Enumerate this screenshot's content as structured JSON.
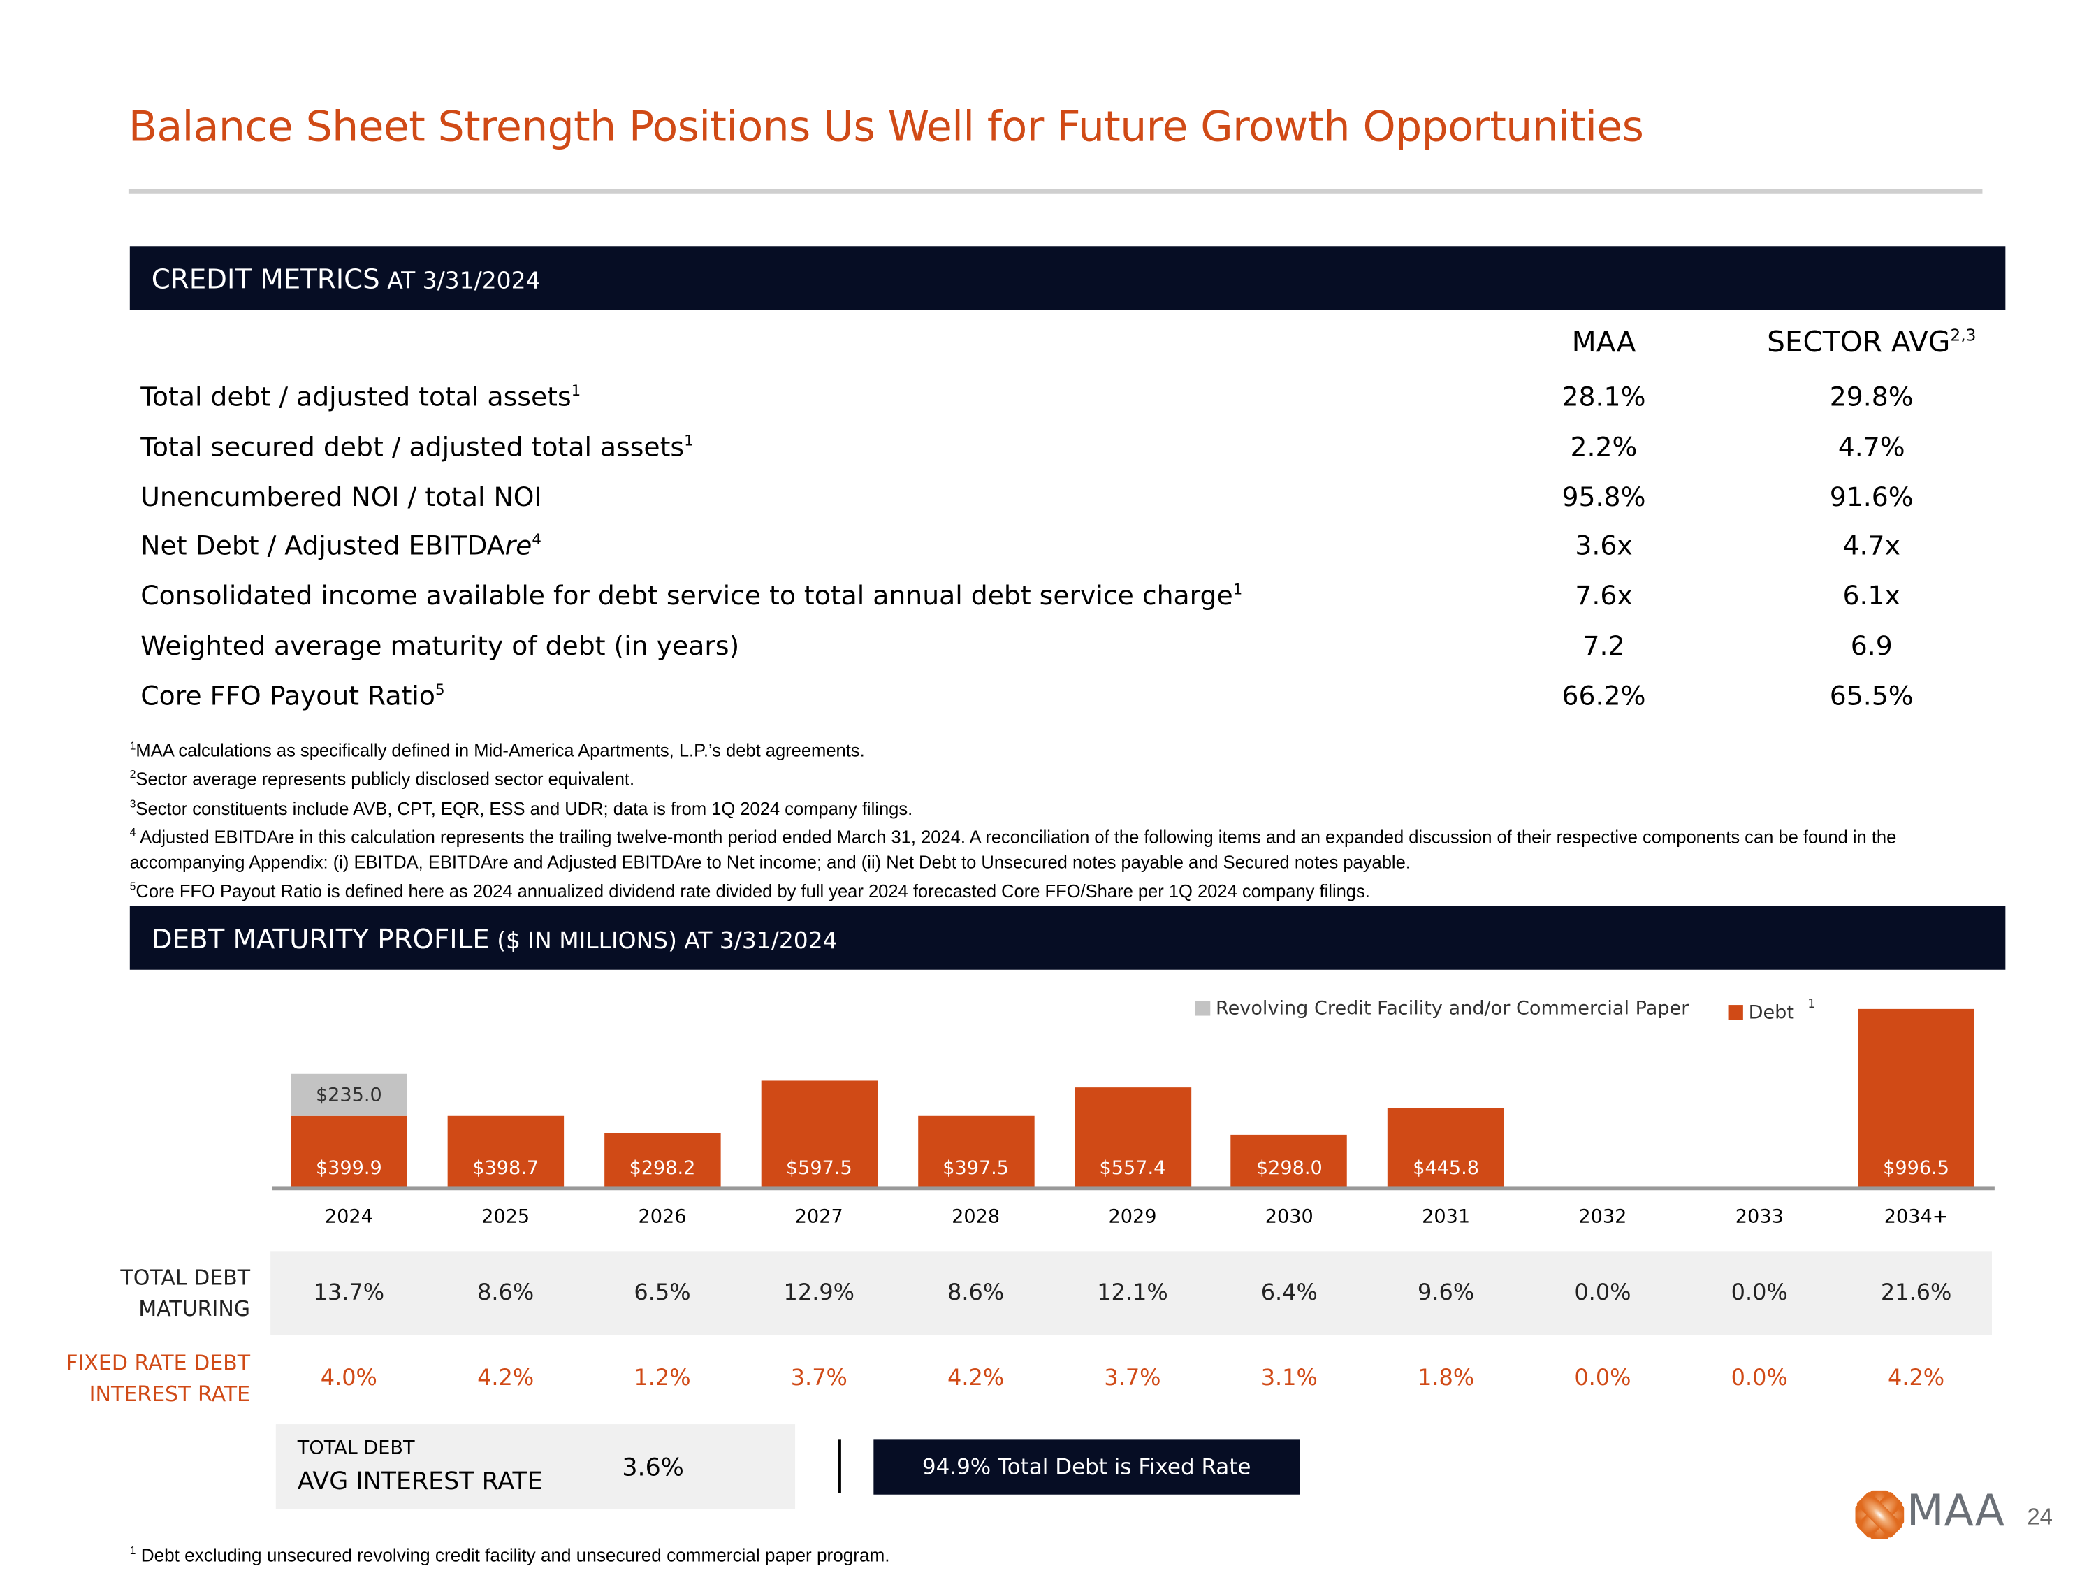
{
  "title": "Balance Sheet Strength Positions Us Well for Future Growth Opportunities",
  "credit": {
    "header_big": "CREDIT METRICS",
    "header_small": " AT 3/31/2024",
    "col_maa": "MAA",
    "col_sector": "SECTOR AVG",
    "col_sector_sup": "2,3",
    "rows": [
      {
        "label": "Total debt / adjusted total assets",
        "sup": "1",
        "maa": "28.1%",
        "sector": "29.8%"
      },
      {
        "label": "Total secured debt / adjusted total assets",
        "sup": "1",
        "maa": "2.2%",
        "sector": "4.7%"
      },
      {
        "label": "Unencumbered NOI / total NOI",
        "sup": "",
        "maa": "95.8%",
        "sector": "91.6%"
      },
      {
        "label": "Net Debt / Adjusted EBITDA",
        "label_italic": "re",
        "sup": "4",
        "maa": "3.6x",
        "sector": "4.7x"
      },
      {
        "label": "Consolidated income available for debt service to total annual debt service charge",
        "sup": "1",
        "maa": "7.6x",
        "sector": "6.1x"
      },
      {
        "label": "Weighted average maturity of debt (in years)",
        "sup": "",
        "maa": "7.2",
        "sector": "6.9"
      },
      {
        "label": "Core FFO Payout Ratio",
        "sup": "5",
        "maa": "66.2%",
        "sector": "65.5%"
      }
    ],
    "footnotes": [
      {
        "n": "1",
        "t": "MAA calculations as specifically defined in Mid-America Apartments, L.P.’s debt agreements."
      },
      {
        "n": "2",
        "t": "Sector average represents publicly disclosed sector equivalent."
      },
      {
        "n": "3",
        "t": "Sector constituents include AVB, CPT, EQR, ESS and UDR; data is from 1Q 2024 company filings."
      },
      {
        "n": "4",
        "t": " Adjusted EBITDAre in this calculation represents the trailing twelve-month period ended March 31, 2024. A reconciliation of the following items and an expanded discussion of their respective components can be found in the accompanying Appendix: (i) EBITDA, EBITDAre and Adjusted EBITDAre to Net income; and (ii) Net Debt to Unsecured notes payable and Secured notes payable."
      },
      {
        "n": "5",
        "t": "Core FFO Payout Ratio is defined here as 2024 annualized dividend rate divided by full year 2024 forecasted Core FFO/Share per 1Q 2024 company filings."
      }
    ]
  },
  "debt": {
    "header_big": "DEBT MATURITY PROFILE",
    "header_small": " ($ IN MILLIONS) AT 3/31/2024",
    "total_label_1": "TOTAL DEBT",
    "total_label_2": "MATURING",
    "fixed_label_1": "FIXED RATE DEBT",
    "fixed_label_2": "INTEREST RATE",
    "total_maturing": [
      "13.7%",
      "8.6%",
      "6.5%",
      "12.9%",
      "8.6%",
      "12.1%",
      "6.4%",
      "9.6%",
      "0.0%",
      "0.0%",
      "21.6%"
    ],
    "fixed_rate": [
      "4.0%",
      "4.2%",
      "1.2%",
      "3.7%",
      "4.2%",
      "3.7%",
      "3.1%",
      "1.8%",
      "0.0%",
      "0.0%",
      "4.2%"
    ],
    "avg_label_1": "TOTAL DEBT",
    "avg_label_2": "AVG INTEREST RATE",
    "avg_value": "3.6%",
    "fixed_box": "94.9% Total Debt is Fixed Rate",
    "footnote_n": "1",
    "footnote": "Debt excluding unsecured revolving credit facility and unsecured commercial paper program."
  },
  "chart_data": {
    "type": "bar",
    "stacked": true,
    "categories": [
      "2024",
      "2025",
      "2026",
      "2027",
      "2028",
      "2029",
      "2030",
      "2031",
      "2032",
      "2033",
      "2034+"
    ],
    "series": [
      {
        "name": "Debt",
        "sup": "1",
        "color": "#d04a16",
        "values": [
          399.9,
          398.7,
          298.2,
          597.5,
          397.5,
          557.4,
          298.0,
          445.8,
          0,
          0,
          996.5
        ],
        "labels": [
          "$399.9",
          "$398.7",
          "$298.2",
          "$597.5",
          "$397.5",
          "$557.4",
          "$298.0",
          "$445.8",
          "",
          "",
          "$996.5"
        ]
      },
      {
        "name": "Revolving Credit Facility and/or Commercial Paper",
        "color": "#c3c3c3",
        "values": [
          235.0,
          0,
          0,
          0,
          0,
          0,
          0,
          0,
          0,
          0,
          0
        ],
        "labels": [
          "$235.0",
          "",
          "",
          "",
          "",
          "",
          "",
          "",
          "",
          "",
          ""
        ]
      }
    ],
    "ylim": [
      0,
      1000
    ]
  },
  "page_number": "24",
  "logo_text": "MAA"
}
